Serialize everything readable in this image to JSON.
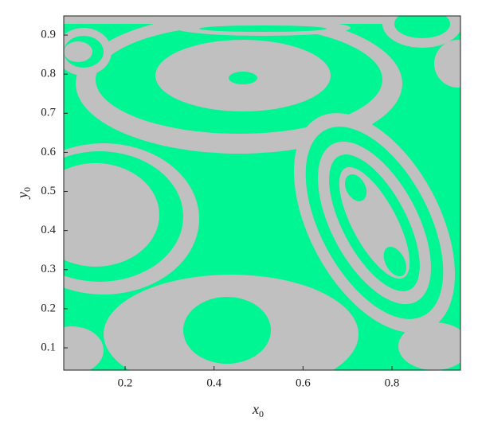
{
  "chart_data": {
    "type": "image",
    "xlabel": {
      "text": "x",
      "subscript": "0"
    },
    "ylabel": {
      "text": "y",
      "subscript": "0"
    },
    "xlim": [
      0.062,
      0.954
    ],
    "xticks": [
      0.2,
      0.4,
      0.6,
      0.8
    ],
    "ylim": [
      0.043,
      0.949
    ],
    "yticks": [
      0.1,
      0.2,
      0.3,
      0.4,
      0.5,
      0.6,
      0.7,
      0.8,
      0.9
    ],
    "colors": [
      "#c0c0c0",
      "#00f593"
    ]
  }
}
